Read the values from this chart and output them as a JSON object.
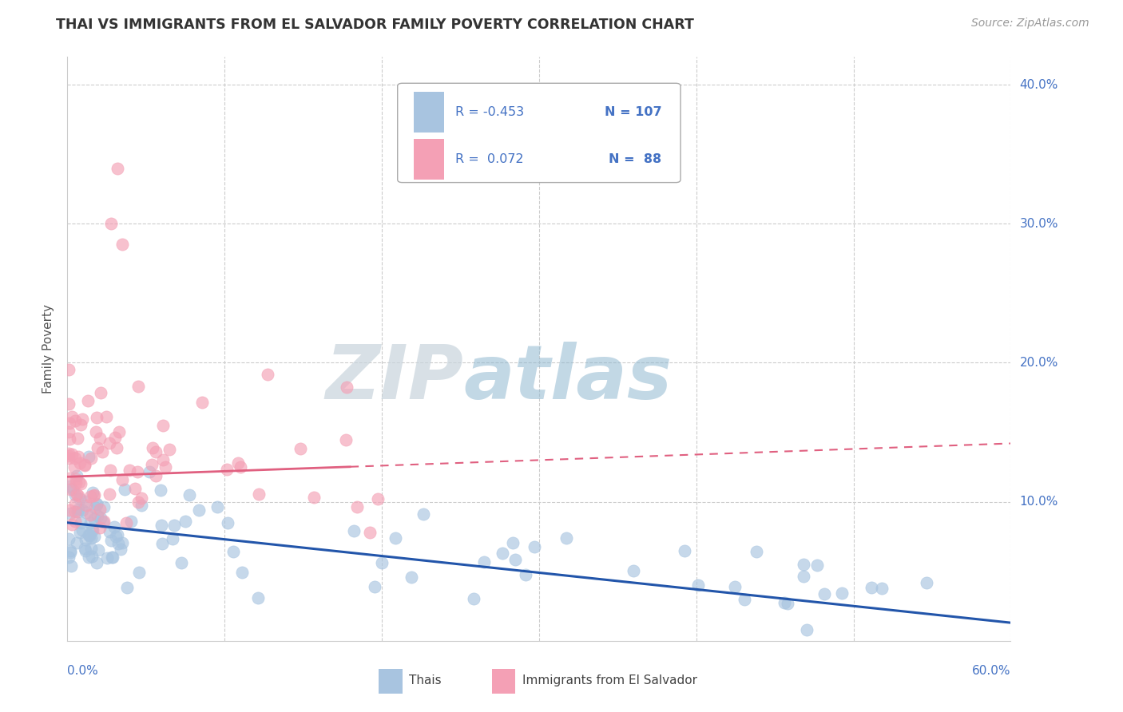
{
  "title": "THAI VS IMMIGRANTS FROM EL SALVADOR FAMILY POVERTY CORRELATION CHART",
  "source": "Source: ZipAtlas.com",
  "ylabel": "Family Poverty",
  "xmin": 0.0,
  "xmax": 0.6,
  "ymin": 0.0,
  "ymax": 0.42,
  "ytick_values": [
    0.0,
    0.1,
    0.2,
    0.3,
    0.4
  ],
  "ytick_labels": [
    "",
    "10.0%",
    "20.0%",
    "30.0%",
    "40.0%"
  ],
  "watermark_zip": "ZIP",
  "watermark_atlas": "atlas",
  "legend_R_thai": "-0.453",
  "legend_N_thai": "107",
  "legend_R_salvador": "0.072",
  "legend_N_salvador": "88",
  "thai_color": "#a8c4e0",
  "salvador_color": "#f4a0b5",
  "thai_line_color": "#2255aa",
  "salvador_line_color": "#e06080",
  "thai_line_solid_end": 0.6,
  "salvador_line_dashed_start": 0.18,
  "salvador_line_end": 0.6
}
